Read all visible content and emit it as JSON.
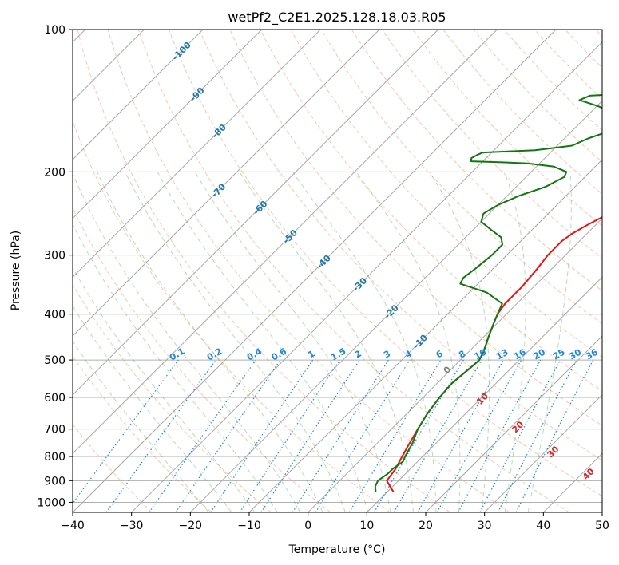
{
  "chart_data": {
    "type": "line",
    "title": "wetPf2_C2E1.2025.128.18.03.R05",
    "xlabel": "Temperature (°C)",
    "ylabel": "Pressure (hPa)",
    "xlim": [
      -40,
      50
    ],
    "ylim": [
      1050,
      100
    ],
    "yscale": "log",
    "x_ticks": [
      "−40",
      "−30",
      "−20",
      "−10",
      "0",
      "10",
      "20",
      "30",
      "40",
      "50"
    ],
    "y_ticks": [
      "100",
      "200",
      "300",
      "400",
      "500",
      "600",
      "700",
      "800",
      "900",
      "1000"
    ],
    "grid": true,
    "series": [
      {
        "color": "#ee1111",
        "points": [
          [
            11,
            950
          ],
          [
            9.5,
            925
          ],
          [
            8,
            900
          ],
          [
            7.5,
            850
          ],
          [
            6.5,
            800
          ],
          [
            5.5,
            750
          ],
          [
            4.5,
            700
          ],
          [
            3.5,
            650
          ],
          [
            2.8,
            600
          ],
          [
            2.5,
            560
          ],
          [
            3,
            520
          ],
          [
            3.2,
            500
          ],
          [
            2.5,
            480
          ],
          [
            1,
            450
          ],
          [
            -0.5,
            420
          ],
          [
            -1.5,
            400
          ],
          [
            -2,
            380
          ],
          [
            -2,
            350
          ],
          [
            -2.5,
            320
          ],
          [
            -3,
            300
          ],
          [
            -3,
            280
          ],
          [
            -2.5,
            270
          ],
          [
            -1.5,
            260
          ],
          [
            1,
            240
          ],
          [
            3,
            225
          ],
          [
            4.5,
            210
          ],
          [
            6,
            200
          ],
          [
            8,
            185
          ],
          [
            10,
            170
          ],
          [
            12,
            160
          ],
          [
            14,
            150
          ],
          [
            16,
            140
          ],
          [
            17.5,
            130
          ],
          [
            18.5,
            120
          ],
          [
            19.5,
            115
          ],
          [
            21,
            110
          ],
          [
            23,
            105
          ],
          [
            24.5,
            100
          ]
        ]
      },
      {
        "color": "#117711",
        "points": [
          [
            8,
            950
          ],
          [
            7,
            925
          ],
          [
            6.5,
            900
          ],
          [
            7,
            870
          ],
          [
            7,
            850
          ],
          [
            7.5,
            820
          ],
          [
            7,
            800
          ],
          [
            6,
            750
          ],
          [
            4.5,
            700
          ],
          [
            3.5,
            650
          ],
          [
            2.8,
            600
          ],
          [
            2.5,
            560
          ],
          [
            3,
            520
          ],
          [
            3.2,
            500
          ],
          [
            2.5,
            480
          ],
          [
            1,
            450
          ],
          [
            -0.5,
            420
          ],
          [
            -1.5,
            400
          ],
          [
            -2.5,
            380
          ],
          [
            -7,
            360
          ],
          [
            -13,
            345
          ],
          [
            -13.5,
            335
          ],
          [
            -13,
            320
          ],
          [
            -12.5,
            300
          ],
          [
            -12.5,
            285
          ],
          [
            -14,
            275
          ],
          [
            -17,
            265
          ],
          [
            -20,
            255
          ],
          [
            -21,
            245
          ],
          [
            -20,
            235
          ],
          [
            -18,
            225
          ],
          [
            -15,
            215
          ],
          [
            -13.5,
            205
          ],
          [
            -14,
            200
          ],
          [
            -17,
            195
          ],
          [
            -22,
            192
          ],
          [
            -26,
            191
          ],
          [
            -32,
            190
          ],
          [
            -32.5,
            187
          ],
          [
            -32,
            184
          ],
          [
            -31.5,
            182
          ],
          [
            -23,
            180
          ],
          [
            -17.5,
            176
          ],
          [
            -16,
            170
          ],
          [
            -14,
            165
          ],
          [
            -13,
            160
          ],
          [
            -14,
            155
          ],
          [
            -16,
            150
          ],
          [
            -20,
            145
          ],
          [
            -24,
            141
          ],
          [
            -23,
            138
          ],
          [
            -19,
            137
          ],
          [
            -12,
            134
          ],
          [
            -7,
            130
          ],
          [
            -5,
            125
          ],
          [
            -4,
            120
          ],
          [
            -3.5,
            115
          ],
          [
            -3.5,
            110
          ],
          [
            -3,
            107
          ],
          [
            -1,
            104
          ],
          [
            1.5,
            100
          ]
        ]
      }
    ],
    "annotations": {
      "temperature_labels": [
        "-100",
        "-90",
        "-80",
        "-70",
        "-60",
        "-50",
        "-40",
        "-30",
        "-20",
        "-10"
      ],
      "mixing_ratio_labels": [
        "0.1",
        "0.2",
        "0.4",
        "0.6",
        "1",
        "1.5",
        "2",
        "3",
        "4",
        "6",
        "8",
        "10",
        "13",
        "16",
        "20",
        "25",
        "30",
        "36"
      ],
      "adiabat_labels": [
        "0",
        "10",
        "20",
        "30",
        "40"
      ]
    },
    "colors": {
      "temperature": "#ee1111",
      "dewpoint": "#117711",
      "isotherm_label": "#2277aa",
      "mixing_ratio": "#1e88e5",
      "dry_adiabat": "#ff7f50",
      "moist_adiabat": "#2ca02c",
      "adiabat_label": "#d62728",
      "zero_label": "#808080"
    }
  }
}
